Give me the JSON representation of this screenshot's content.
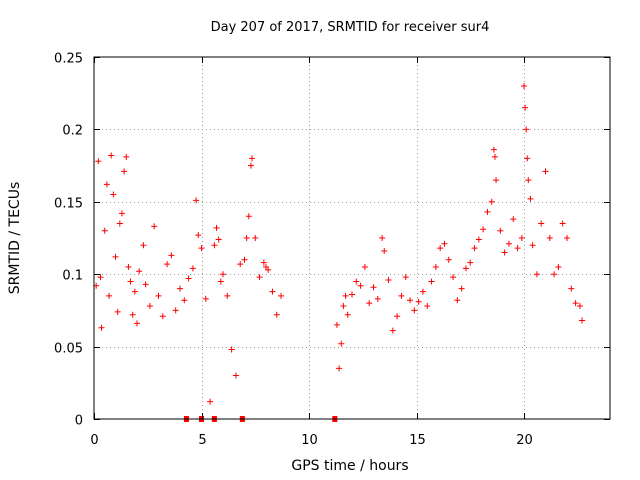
{
  "chart_data": {
    "type": "scatter",
    "title": "Day 207 of 2017, SRMTID for receiver sur4",
    "xlabel": "GPS time / hours",
    "ylabel": "SRMTID / TECUs",
    "xlim": [
      0,
      24
    ],
    "ylim": [
      0,
      0.25
    ],
    "x_ticks": [
      0,
      5,
      10,
      15,
      20
    ],
    "y_ticks": [
      0,
      0.05,
      0.1,
      0.15,
      0.2,
      0.25
    ],
    "x_tick_labels": [
      "0",
      "5",
      "10",
      "15",
      "20"
    ],
    "y_tick_labels": [
      "0",
      "0.05",
      "0.1",
      "0.15",
      "0.2",
      "0.25"
    ],
    "grid": true,
    "marker": "+",
    "color": "#ff0000",
    "series": [
      {
        "name": "sur4 SRMTID",
        "points": [
          [
            0.1,
            0.092
          ],
          [
            0.2,
            0.178
          ],
          [
            0.3,
            0.098
          ],
          [
            0.35,
            0.063
          ],
          [
            0.5,
            0.13
          ],
          [
            0.6,
            0.162
          ],
          [
            0.7,
            0.085
          ],
          [
            0.8,
            0.182
          ],
          [
            0.9,
            0.155
          ],
          [
            1.0,
            0.112
          ],
          [
            1.1,
            0.074
          ],
          [
            1.2,
            0.135
          ],
          [
            1.3,
            0.142
          ],
          [
            1.4,
            0.171
          ],
          [
            1.5,
            0.181
          ],
          [
            1.6,
            0.105
          ],
          [
            1.7,
            0.095
          ],
          [
            1.8,
            0.072
          ],
          [
            1.9,
            0.088
          ],
          [
            2.0,
            0.066
          ],
          [
            2.1,
            0.102
          ],
          [
            2.3,
            0.12
          ],
          [
            2.4,
            0.093
          ],
          [
            2.6,
            0.078
          ],
          [
            2.8,
            0.133
          ],
          [
            3.0,
            0.085
          ],
          [
            3.2,
            0.071
          ],
          [
            3.4,
            0.107
          ],
          [
            3.6,
            0.113
          ],
          [
            3.8,
            0.075
          ],
          [
            4.0,
            0.09
          ],
          [
            4.2,
            0.082
          ],
          [
            4.4,
            0.097
          ],
          [
            4.6,
            0.104
          ],
          [
            4.75,
            0.151
          ],
          [
            4.85,
            0.127
          ],
          [
            5.0,
            0.118
          ],
          [
            5.2,
            0.083
          ],
          [
            5.4,
            0.012
          ],
          [
            5.6,
            0.12
          ],
          [
            5.7,
            0.132
          ],
          [
            5.8,
            0.124
          ],
          [
            5.9,
            0.095
          ],
          [
            6.0,
            0.1
          ],
          [
            6.2,
            0.085
          ],
          [
            6.4,
            0.048
          ],
          [
            6.6,
            0.03
          ],
          [
            6.8,
            0.107
          ],
          [
            7.0,
            0.11
          ],
          [
            7.1,
            0.125
          ],
          [
            7.2,
            0.14
          ],
          [
            7.3,
            0.175
          ],
          [
            7.35,
            0.18
          ],
          [
            7.5,
            0.125
          ],
          [
            7.7,
            0.098
          ],
          [
            7.9,
            0.108
          ],
          [
            8.0,
            0.105
          ],
          [
            8.1,
            0.103
          ],
          [
            8.3,
            0.088
          ],
          [
            8.5,
            0.072
          ],
          [
            8.7,
            0.085
          ],
          [
            11.3,
            0.065
          ],
          [
            11.4,
            0.035
          ],
          [
            11.5,
            0.052
          ],
          [
            11.6,
            0.078
          ],
          [
            11.7,
            0.085
          ],
          [
            11.8,
            0.072
          ],
          [
            12.0,
            0.086
          ],
          [
            12.2,
            0.095
          ],
          [
            12.4,
            0.092
          ],
          [
            12.6,
            0.105
          ],
          [
            12.8,
            0.08
          ],
          [
            13.0,
            0.091
          ],
          [
            13.2,
            0.083
          ],
          [
            13.4,
            0.125
          ],
          [
            13.5,
            0.116
          ],
          [
            13.7,
            0.096
          ],
          [
            13.9,
            0.061
          ],
          [
            14.1,
            0.071
          ],
          [
            14.3,
            0.085
          ],
          [
            14.5,
            0.098
          ],
          [
            14.7,
            0.082
          ],
          [
            14.9,
            0.075
          ],
          [
            15.1,
            0.081
          ],
          [
            15.3,
            0.088
          ],
          [
            15.5,
            0.078
          ],
          [
            15.7,
            0.095
          ],
          [
            15.9,
            0.105
          ],
          [
            16.1,
            0.118
          ],
          [
            16.3,
            0.121
          ],
          [
            16.5,
            0.11
          ],
          [
            16.7,
            0.098
          ],
          [
            16.9,
            0.082
          ],
          [
            17.1,
            0.09
          ],
          [
            17.3,
            0.104
          ],
          [
            17.5,
            0.108
          ],
          [
            17.7,
            0.118
          ],
          [
            17.9,
            0.124
          ],
          [
            18.1,
            0.131
          ],
          [
            18.3,
            0.143
          ],
          [
            18.5,
            0.15
          ],
          [
            18.6,
            0.186
          ],
          [
            18.65,
            0.181
          ],
          [
            18.7,
            0.165
          ],
          [
            18.9,
            0.13
          ],
          [
            19.1,
            0.115
          ],
          [
            19.3,
            0.121
          ],
          [
            19.5,
            0.138
          ],
          [
            19.7,
            0.118
          ],
          [
            19.9,
            0.125
          ],
          [
            20.0,
            0.23
          ],
          [
            20.05,
            0.215
          ],
          [
            20.1,
            0.2
          ],
          [
            20.15,
            0.18
          ],
          [
            20.2,
            0.165
          ],
          [
            20.3,
            0.152
          ],
          [
            20.4,
            0.12
          ],
          [
            20.6,
            0.1
          ],
          [
            20.8,
            0.135
          ],
          [
            21.0,
            0.171
          ],
          [
            21.2,
            0.125
          ],
          [
            21.4,
            0.1
          ],
          [
            21.6,
            0.105
          ],
          [
            21.8,
            0.135
          ],
          [
            22.0,
            0.125
          ],
          [
            22.2,
            0.09
          ],
          [
            22.4,
            0.08
          ],
          [
            22.6,
            0.078
          ],
          [
            22.7,
            0.068
          ]
        ]
      }
    ],
    "x_marks": [
      4.3,
      5.0,
      5.6,
      6.9,
      11.2
    ]
  }
}
